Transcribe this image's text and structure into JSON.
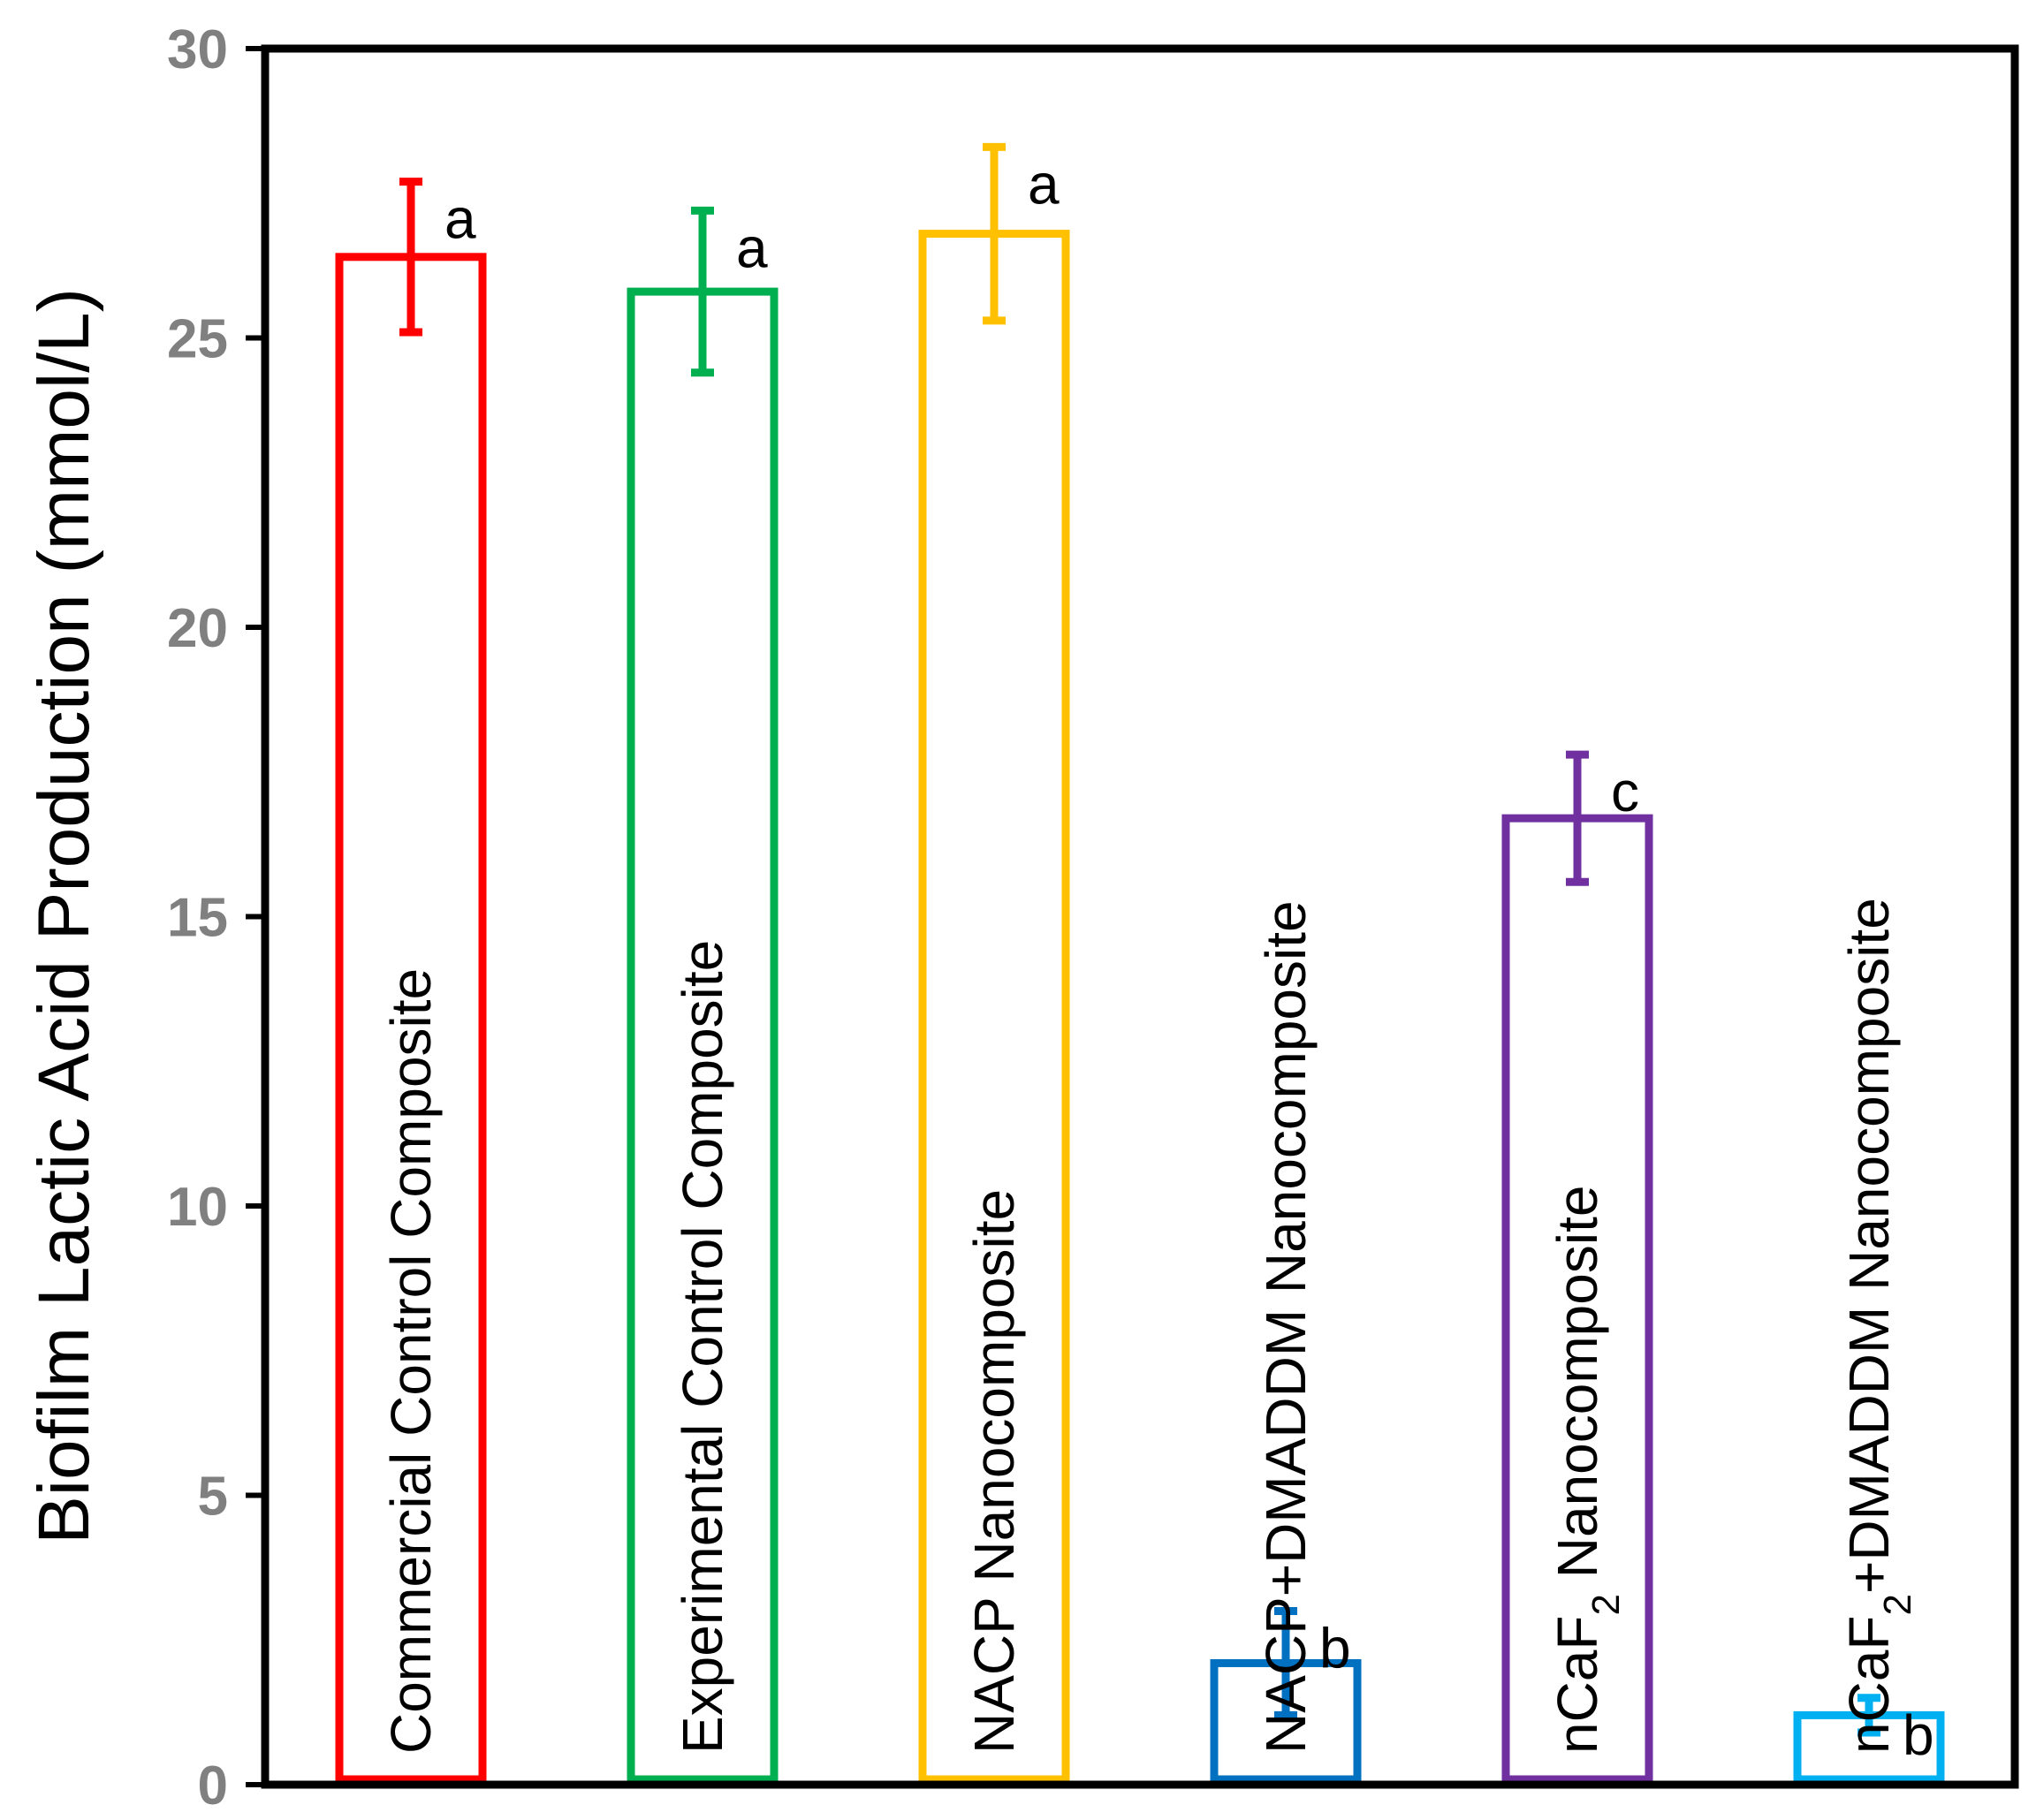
{
  "chart_data": {
    "type": "bar",
    "title": "",
    "xlabel": "",
    "ylabel": "Biofilm Lactic Acid Production (mmol/L)",
    "ylim": [
      0,
      30
    ],
    "yticks": [
      "0",
      "5",
      "10",
      "15",
      "20",
      "25",
      "30"
    ],
    "grid": false,
    "legend": "none",
    "bars": [
      {
        "label": "Commercial Control Composite",
        "value": 26.4,
        "error": 1.3,
        "color": "#ff0000",
        "letter": "a"
      },
      {
        "label": "Experimental Control Composite",
        "value": 25.8,
        "error": 1.4,
        "color": "#00b050",
        "letter": "a"
      },
      {
        "label": "NACP Nanocomposite",
        "value": 26.8,
        "error": 1.5,
        "color": "#ffc000",
        "letter": "a"
      },
      {
        "label": "NACP+DMADDM Nanocomposite",
        "value": 2.1,
        "error": 0.9,
        "color": "#0070c0",
        "letter": "b"
      },
      {
        "label_main": "nCaF",
        "label_sub": "2",
        "label_tail": " Nanocomposite",
        "value": 16.7,
        "error": 1.1,
        "color": "#7030a0",
        "letter": "c"
      },
      {
        "label_main": "nCaF",
        "label_sub": "2",
        "label_tail": "+DMADDM Nanocomposite",
        "value": 1.2,
        "error": 0.3,
        "color": "#00b0f0",
        "letter": "b"
      }
    ]
  }
}
